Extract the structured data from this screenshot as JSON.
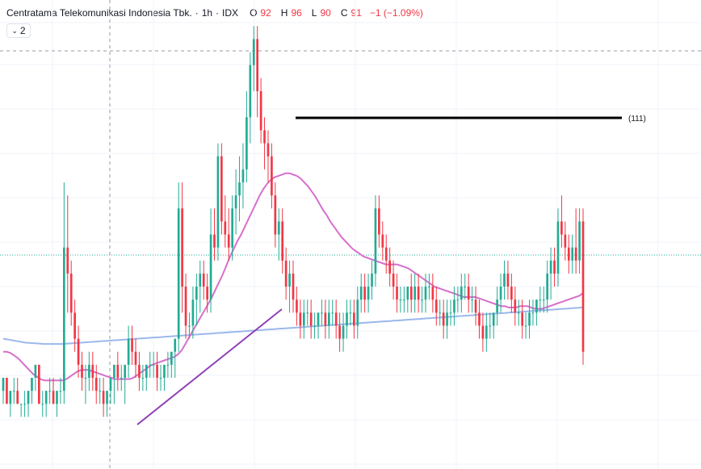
{
  "header": {
    "symbol_name": "Centratama Telekomunikasi Indonesia Tbk.",
    "dot1": "·",
    "interval": "1h",
    "dot2": "·",
    "exchange": "IDX",
    "open_label": "O",
    "open": "92",
    "high_label": "H",
    "high": "96",
    "low_label": "L",
    "low": "90",
    "close_label": "C",
    "close": "91",
    "change": "−1 (−1.09%)"
  },
  "collapse_button": {
    "icon": "chevron-down-icon",
    "label": "2"
  },
  "chart_data": {
    "type": "candlestick",
    "colors": {
      "up": "#22ab94",
      "down": "#f23645",
      "ma_fast": "#d66fcc",
      "ma_slow": "#9bb8ec",
      "trendline": "#8e3fb6",
      "level": "#000000"
    },
    "horizontal_level": {
      "label": "(111)"
    },
    "series": [
      {
        "name": "candles"
      },
      {
        "name": "ma_fast"
      },
      {
        "name": "ma_slow"
      }
    ],
    "candles": [
      [
        89,
        90,
        88,
        90
      ],
      [
        90,
        90,
        88,
        88
      ],
      [
        88,
        89,
        87,
        89
      ],
      [
        89,
        90,
        88,
        89
      ],
      [
        89,
        90,
        88,
        88
      ],
      [
        88,
        88,
        87,
        88
      ],
      [
        88,
        89,
        87,
        88
      ],
      [
        88,
        89,
        87,
        89
      ],
      [
        89,
        90,
        88,
        90
      ],
      [
        90,
        91,
        89,
        91
      ],
      [
        91,
        91,
        88,
        88
      ],
      [
        88,
        89,
        87,
        88
      ],
      [
        88,
        89,
        87,
        89
      ],
      [
        89,
        90,
        88,
        89
      ],
      [
        89,
        90,
        88,
        88
      ],
      [
        88,
        89,
        87,
        89
      ],
      [
        89,
        90,
        88,
        89
      ],
      [
        89,
        105,
        88,
        100
      ],
      [
        100,
        104,
        95,
        98
      ],
      [
        98,
        99,
        94,
        95
      ],
      [
        95,
        96,
        92,
        93
      ],
      [
        93,
        94,
        90,
        91
      ],
      [
        91,
        92,
        89,
        90
      ],
      [
        90,
        91,
        88,
        90
      ],
      [
        90,
        92,
        89,
        91
      ],
      [
        91,
        92,
        89,
        90
      ],
      [
        90,
        91,
        88,
        89
      ],
      [
        89,
        90,
        88,
        89
      ],
      [
        89,
        90,
        87,
        88
      ],
      [
        88,
        89,
        87,
        89
      ],
      [
        89,
        90,
        88,
        90
      ],
      [
        90,
        91,
        88,
        91
      ],
      [
        91,
        92,
        89,
        90
      ],
      [
        90,
        91,
        89,
        90
      ],
      [
        90,
        91,
        88,
        91
      ],
      [
        91,
        94,
        90,
        93
      ],
      [
        93,
        94,
        91,
        92
      ],
      [
        92,
        93,
        90,
        91
      ],
      [
        91,
        92,
        89,
        90
      ],
      [
        90,
        91,
        89,
        90
      ],
      [
        90,
        91,
        89,
        91
      ],
      [
        91,
        92,
        90,
        91
      ],
      [
        91,
        92,
        90,
        91
      ],
      [
        91,
        92,
        89,
        90
      ],
      [
        90,
        91,
        89,
        90
      ],
      [
        90,
        91,
        89,
        91
      ],
      [
        91,
        92,
        90,
        91
      ],
      [
        91,
        92,
        90,
        92
      ],
      [
        92,
        93,
        90,
        93
      ],
      [
        93,
        105,
        92,
        103
      ],
      [
        103,
        105,
        95,
        97
      ],
      [
        97,
        98,
        93,
        94
      ],
      [
        94,
        95,
        93,
        94
      ],
      [
        94,
        97,
        93,
        96
      ],
      [
        96,
        98,
        94,
        97
      ],
      [
        97,
        99,
        95,
        98
      ],
      [
        98,
        99,
        96,
        97
      ],
      [
        97,
        98,
        95,
        96
      ],
      [
        96,
        103,
        95,
        101
      ],
      [
        101,
        103,
        99,
        100
      ],
      [
        100,
        108,
        99,
        107
      ],
      [
        107,
        108,
        101,
        102
      ],
      [
        102,
        104,
        100,
        101
      ],
      [
        101,
        103,
        99,
        100
      ],
      [
        100,
        104,
        99,
        103
      ],
      [
        103,
        106,
        101,
        104
      ],
      [
        104,
        107,
        102,
        105
      ],
      [
        105,
        108,
        103,
        106
      ],
      [
        106,
        112,
        105,
        110
      ],
      [
        110,
        115,
        108,
        114
      ],
      [
        114,
        117,
        112,
        116
      ],
      [
        116,
        117,
        110,
        112
      ],
      [
        112,
        113,
        108,
        109
      ],
      [
        109,
        110,
        106,
        108
      ],
      [
        108,
        109,
        105,
        107
      ],
      [
        107,
        108,
        103,
        104
      ],
      [
        104,
        105,
        100,
        101
      ],
      [
        101,
        103,
        99,
        102
      ],
      [
        102,
        103,
        98,
        99
      ],
      [
        99,
        100,
        96,
        97
      ],
      [
        97,
        99,
        95,
        98
      ],
      [
        98,
        99,
        95,
        96
      ],
      [
        96,
        97,
        94,
        95
      ],
      [
        95,
        96,
        93,
        94
      ],
      [
        94,
        96,
        93,
        95
      ],
      [
        95,
        96,
        94,
        95
      ],
      [
        95,
        96,
        93,
        94
      ],
      [
        94,
        95,
        93,
        94
      ],
      [
        94,
        95,
        93,
        95
      ],
      [
        95,
        96,
        94,
        95
      ],
      [
        95,
        96,
        93,
        94
      ],
      [
        94,
        96,
        93,
        95
      ],
      [
        95,
        96,
        94,
        95
      ],
      [
        95,
        96,
        93,
        94
      ],
      [
        94,
        95,
        92,
        93
      ],
      [
        93,
        95,
        92,
        94
      ],
      [
        94,
        96,
        93,
        95
      ],
      [
        95,
        96,
        94,
        95
      ],
      [
        95,
        96,
        93,
        94
      ],
      [
        94,
        97,
        93,
        96
      ],
      [
        96,
        98,
        95,
        97
      ],
      [
        97,
        98,
        95,
        96
      ],
      [
        96,
        98,
        95,
        97
      ],
      [
        97,
        99,
        96,
        98
      ],
      [
        98,
        104,
        97,
        103
      ],
      [
        103,
        104,
        100,
        101
      ],
      [
        101,
        102,
        99,
        100
      ],
      [
        100,
        101,
        98,
        99
      ],
      [
        99,
        100,
        97,
        98
      ],
      [
        98,
        99,
        96,
        97
      ],
      [
        97,
        98,
        95,
        96
      ],
      [
        96,
        97,
        95,
        96
      ],
      [
        96,
        97,
        95,
        96
      ],
      [
        96,
        97,
        95,
        97
      ],
      [
        97,
        98,
        95,
        96
      ],
      [
        96,
        98,
        95,
        97
      ],
      [
        97,
        98,
        95,
        96
      ],
      [
        96,
        97,
        95,
        96
      ],
      [
        96,
        98,
        95,
        97
      ],
      [
        97,
        98,
        96,
        97
      ],
      [
        97,
        98,
        95,
        96
      ],
      [
        96,
        97,
        94,
        95
      ],
      [
        95,
        96,
        94,
        95
      ],
      [
        95,
        96,
        93,
        94
      ],
      [
        94,
        96,
        93,
        95
      ],
      [
        95,
        96,
        94,
        95
      ],
      [
        95,
        97,
        94,
        96
      ],
      [
        96,
        97,
        95,
        96
      ],
      [
        96,
        98,
        95,
        97
      ],
      [
        97,
        98,
        96,
        97
      ],
      [
        97,
        98,
        95,
        96
      ],
      [
        96,
        97,
        95,
        96
      ],
      [
        96,
        97,
        94,
        95
      ],
      [
        95,
        96,
        93,
        94
      ],
      [
        94,
        95,
        92,
        93
      ],
      [
        93,
        95,
        92,
        94
      ],
      [
        94,
        95,
        93,
        94
      ],
      [
        94,
        95,
        93,
        95
      ],
      [
        95,
        97,
        94,
        96
      ],
      [
        96,
        98,
        95,
        97
      ],
      [
        97,
        99,
        96,
        98
      ],
      [
        98,
        99,
        96,
        97
      ],
      [
        97,
        98,
        95,
        96
      ],
      [
        96,
        97,
        94,
        95
      ],
      [
        95,
        96,
        94,
        95
      ],
      [
        95,
        96,
        93,
        94
      ],
      [
        94,
        95,
        93,
        94
      ],
      [
        94,
        96,
        93,
        95
      ],
      [
        95,
        96,
        94,
        95
      ],
      [
        95,
        96,
        94,
        96
      ],
      [
        96,
        97,
        95,
        96
      ],
      [
        96,
        97,
        95,
        96
      ],
      [
        96,
        99,
        95,
        98
      ],
      [
        98,
        100,
        96,
        99
      ],
      [
        99,
        100,
        97,
        98
      ],
      [
        98,
        103,
        97,
        102
      ],
      [
        102,
        104,
        100,
        101
      ],
      [
        101,
        102,
        99,
        100
      ],
      [
        100,
        101,
        98,
        99
      ],
      [
        99,
        101,
        98,
        100
      ],
      [
        100,
        103,
        98,
        99
      ],
      [
        99,
        103,
        98,
        102
      ],
      [
        102,
        103,
        91,
        92
      ]
    ],
    "ma_fast_values": [
      92,
      92,
      91.9,
      91.7,
      91.5,
      91.2,
      90.9,
      90.6,
      90.3,
      90.1,
      89.9,
      89.8,
      89.8,
      89.8,
      89.8,
      89.8,
      89.8,
      89.9,
      90.1,
      90.3,
      90.5,
      90.6,
      90.6,
      90.6,
      90.5,
      90.4,
      90.3,
      90.2,
      90.1,
      90,
      89.9,
      89.9,
      89.9,
      89.9,
      89.9,
      90,
      90.2,
      90.4,
      90.6,
      90.8,
      91,
      91.1,
      91.2,
      91.3,
      91.4,
      91.5,
      91.6,
      91.8,
      92.1,
      92.6,
      93.1,
      93.6,
      94.1,
      94.6,
      95.1,
      95.6,
      96.1,
      96.7,
      97.3,
      97.9,
      98.6,
      99.3,
      99.9,
      100.5,
      101,
      101.6,
      102.2,
      102.8,
      103.4,
      104,
      104.5,
      104.9,
      105.2,
      105.4,
      105.5,
      105.6,
      105.7,
      105.7,
      105.6,
      105.5,
      105.3,
      105,
      104.7,
      104.3,
      103.9,
      103.4,
      102.9,
      102.5,
      102,
      101.6,
      101.2,
      100.8,
      100.5,
      100.2,
      99.9,
      99.7,
      99.5,
      99.3,
      99.2,
      99.1,
      99,
      98.9,
      98.8,
      98.7,
      98.7,
      98.7,
      98.7,
      98.6,
      98.5,
      98.4,
      98.2,
      98,
      97.8,
      97.6,
      97.4,
      97.2,
      97,
      96.9,
      96.8,
      96.7,
      96.6,
      96.5,
      96.4,
      96.3,
      96.2,
      96.2,
      96.2,
      96.2,
      96.1,
      96,
      95.9,
      95.8,
      95.7,
      95.6,
      95.5,
      95.5,
      95.4,
      95.4,
      95.4,
      95.5,
      95.5,
      95.5,
      95.4,
      95.3,
      95.3,
      95.3,
      95.4,
      95.5,
      95.6,
      95.7,
      95.8,
      95.9,
      96,
      96.1,
      96.2,
      96.3,
      96.5
    ],
    "ma_slow_values": [
      93,
      92.95,
      92.9,
      92.85,
      92.8,
      92.75,
      92.7,
      92.68,
      92.66,
      92.64,
      92.62,
      92.6,
      92.6,
      92.6,
      92.6,
      92.6,
      92.6,
      92.62,
      92.64,
      92.66,
      92.68,
      92.7,
      92.72,
      92.74,
      92.76,
      92.78,
      92.8,
      92.82,
      92.84,
      92.86,
      92.88,
      92.9,
      92.92,
      92.94,
      92.96,
      92.98,
      93,
      93.02,
      93.04,
      93.06,
      93.08,
      93.1,
      93.12,
      93.14,
      93.16,
      93.18,
      93.2,
      93.22,
      93.24,
      93.26,
      93.28,
      93.3,
      93.32,
      93.34,
      93.36,
      93.38,
      93.4,
      93.42,
      93.44,
      93.46,
      93.48,
      93.5,
      93.52,
      93.54,
      93.56,
      93.58,
      93.6,
      93.62,
      93.64,
      93.66,
      93.68,
      93.7,
      93.72,
      93.74,
      93.76,
      93.78,
      93.8,
      93.82,
      93.84,
      93.86,
      93.88,
      93.9,
      93.92,
      93.94,
      93.96,
      93.98,
      94,
      94.02,
      94.04,
      94.06,
      94.08,
      94.1,
      94.12,
      94.14,
      94.16,
      94.18,
      94.2,
      94.22,
      94.24,
      94.26,
      94.28,
      94.3,
      94.32,
      94.34,
      94.36,
      94.38,
      94.4,
      94.42,
      94.44,
      94.46,
      94.48,
      94.5,
      94.52,
      94.54,
      94.56,
      94.58,
      94.6,
      94.62,
      94.64,
      94.66,
      94.68,
      94.7,
      94.72,
      94.74,
      94.76,
      94.78,
      94.8,
      94.82,
      94.84,
      94.86,
      94.88,
      94.9,
      94.92,
      94.94,
      94.96,
      94.98,
      95,
      95.02,
      95.04,
      95.06,
      95.08,
      95.1,
      95.12,
      95.14,
      95.16,
      95.18,
      95.2,
      95.22,
      95.24,
      95.26,
      95.28,
      95.3,
      95.32,
      95.34,
      95.36,
      95.38,
      95.4
    ]
  }
}
